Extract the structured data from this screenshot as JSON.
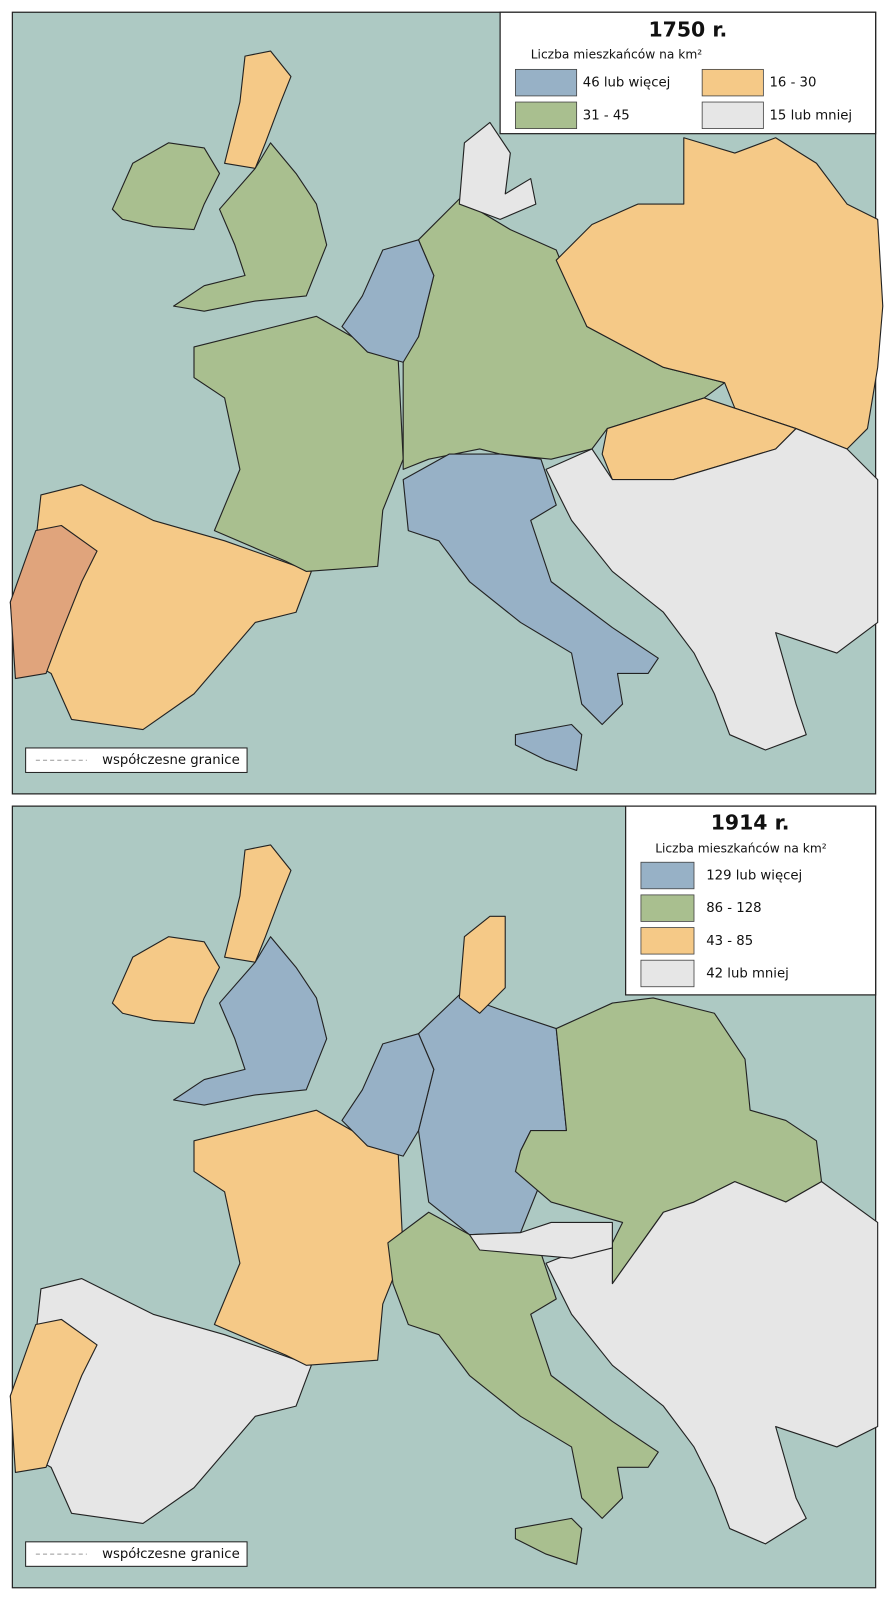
{
  "maps": [
    {
      "title": "1750 r.",
      "legend_title": "Liczba mieszkańców na km²",
      "legend": [
        {
          "label": "46 lub więcej",
          "color": "#97b1c6"
        },
        {
          "label": "31 - 45",
          "color": "#a9bf8f"
        },
        {
          "label": "16 - 30",
          "color": "#f5c987"
        },
        {
          "label": "15 lub mniej",
          "color": "#e6e6e6"
        }
      ],
      "border_note": "współczesne granice"
    },
    {
      "title": "1914 r.",
      "legend_title": "Liczba mieszkańców na km²",
      "legend": [
        {
          "label": "129 lub więcej",
          "color": "#97b1c6"
        },
        {
          "label": "86 - 128",
          "color": "#a9bf8f"
        },
        {
          "label": "43 - 85",
          "color": "#f5c987"
        },
        {
          "label": "42 lub mniej",
          "color": "#e6e6e6"
        }
      ],
      "border_note": "współczesne granice"
    }
  ]
}
